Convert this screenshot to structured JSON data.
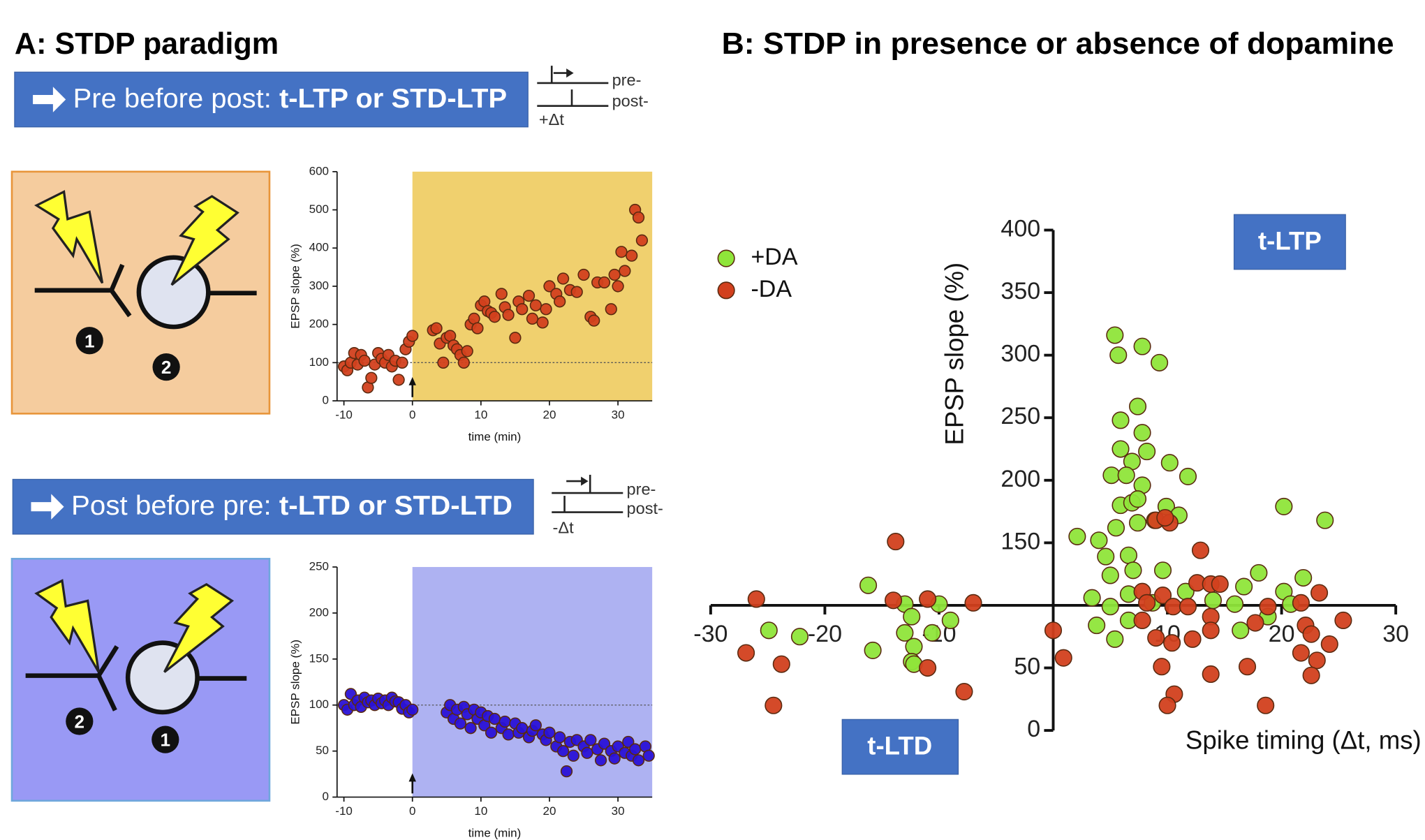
{
  "panel_a": {
    "title": "A: STDP paradigm",
    "ltp_banner": {
      "prefix": "Pre before post: ",
      "emphasis": "t-LTP or STD-LTP"
    },
    "ltp_timing": {
      "pre": "pre-",
      "post": "post-",
      "delta": "+Δt"
    },
    "ltp_neurons": [
      "1",
      "2"
    ],
    "ltd_banner": {
      "prefix": "Post before pre: ",
      "emphasis": "t-LTD or STD-LTD"
    },
    "ltd_timing": {
      "pre": "pre-",
      "post": "post-",
      "delta": "-Δt"
    },
    "ltd_neurons": [
      "2",
      "1"
    ]
  },
  "panel_b": {
    "title": "B: STDP in presence or absence of dopamine",
    "ltp_tag": "t-LTP",
    "ltd_tag": "t-LTD"
  },
  "chart_data": [
    {
      "type": "scatter",
      "x_label": "time (min)",
      "y_label": "EPSP slope (%)",
      "xlim": [
        -11,
        35
      ],
      "ylim": [
        0,
        600
      ],
      "xticks": [
        -10,
        0,
        10,
        20,
        30
      ],
      "yticks": [
        0,
        100,
        200,
        300,
        400,
        500,
        600
      ],
      "shade": {
        "from": 0,
        "color": "#f0d06e"
      },
      "reference_line": 100,
      "series": [
        {
          "color": "#d2401e",
          "x": [
            -10,
            -9.5,
            -9,
            -8.5,
            -8,
            -7.5,
            -7,
            -6.5,
            -6,
            -5.5,
            -5,
            -4.5,
            -4,
            -3.5,
            -3,
            -2.5,
            -2,
            -1.5,
            -1,
            -0.5,
            0,
            3,
            3.5,
            4,
            4.5,
            5,
            5.5,
            6,
            6.5,
            7,
            7.5,
            8,
            8.5,
            9,
            9.5,
            10,
            10.5,
            11,
            11.5,
            12,
            13,
            13.5,
            14,
            15,
            15.5,
            16,
            17,
            17.5,
            18,
            19,
            19.5,
            20,
            21,
            21.5,
            22,
            23,
            24,
            25,
            26,
            26.5,
            27,
            28,
            29,
            29.5,
            30,
            30.5,
            31,
            32,
            32.5,
            33,
            33.5
          ],
          "values": [
            90,
            80,
            100,
            125,
            95,
            120,
            105,
            35,
            60,
            95,
            125,
            110,
            100,
            120,
            90,
            105,
            55,
            100,
            135,
            155,
            170,
            185,
            190,
            150,
            100,
            165,
            170,
            145,
            135,
            120,
            100,
            130,
            200,
            215,
            190,
            250,
            260,
            235,
            230,
            220,
            280,
            245,
            225,
            165,
            260,
            240,
            275,
            215,
            250,
            205,
            240,
            300,
            280,
            260,
            320,
            290,
            285,
            330,
            220,
            210,
            310,
            310,
            240,
            330,
            300,
            390,
            340,
            380,
            500,
            480,
            420
          ]
        }
      ]
    },
    {
      "type": "scatter",
      "x_label": "time (min)",
      "y_label": "EPSP slope (%)",
      "xlim": [
        -11,
        35
      ],
      "ylim": [
        0,
        250
      ],
      "xticks": [
        -10,
        0,
        10,
        20,
        30
      ],
      "yticks": [
        0,
        50,
        100,
        150,
        200,
        250
      ],
      "shade": {
        "from": 0,
        "color": "#aeb2f2"
      },
      "reference_line": 100,
      "series": [
        {
          "color": "#2a12d6",
          "x": [
            -10,
            -9.5,
            -9,
            -8.5,
            -8,
            -7.5,
            -7,
            -6.5,
            -6,
            -5.5,
            -5,
            -4.5,
            -4,
            -3.5,
            -3,
            -2.5,
            -2,
            -1.5,
            -1,
            -0.5,
            0,
            5,
            5.5,
            6,
            6.5,
            7,
            7.5,
            8,
            8.5,
            9,
            9.5,
            10,
            10.5,
            11,
            11.5,
            12,
            13,
            13.5,
            14,
            15,
            15.5,
            16,
            17,
            17.5,
            18,
            19,
            19.5,
            20,
            21,
            21.5,
            22,
            22.5,
            23,
            23.5,
            24,
            25,
            25.5,
            26,
            27,
            27.5,
            28,
            29,
            29.5,
            30,
            31,
            31.5,
            32,
            32.5,
            33,
            34,
            34.5
          ],
          "values": [
            100,
            95,
            112,
            100,
            105,
            98,
            108,
            103,
            105,
            100,
            107,
            102,
            105,
            100,
            108,
            104,
            103,
            96,
            100,
            92,
            95,
            92,
            100,
            85,
            95,
            80,
            98,
            90,
            75,
            95,
            85,
            92,
            78,
            88,
            70,
            85,
            75,
            82,
            68,
            80,
            70,
            75,
            65,
            72,
            78,
            68,
            62,
            70,
            55,
            65,
            50,
            28,
            60,
            45,
            62,
            55,
            48,
            62,
            52,
            40,
            58,
            50,
            42,
            55,
            48,
            60,
            45,
            52,
            40,
            55,
            45
          ]
        }
      ]
    },
    {
      "type": "scatter",
      "x_label": "Spike timing (Δt, ms)",
      "y_label": "EPSP slope (%)",
      "xlim": [
        -30,
        30
      ],
      "ylim": [
        0,
        400
      ],
      "xticks": [
        -30,
        -20,
        -10,
        10,
        20,
        30
      ],
      "yticks": [
        0,
        50,
        150,
        200,
        250,
        300,
        350,
        400
      ],
      "x_axis_at": 100,
      "y_axis_at": 0,
      "legend": "top-left",
      "series": [
        {
          "name": "+DA",
          "color": "#8fe53a",
          "x": [
            -16.2,
            -24.9,
            -22.2,
            -15.8,
            -13,
            -12.4,
            -13,
            -12.2,
            -12.4,
            -12.2,
            -10.6,
            -10,
            -9,
            5.4,
            5.7,
            7.8,
            9.3,
            7.4,
            5.9,
            7.8,
            5.9,
            8.2,
            6.9,
            5.1,
            6.4,
            10.2,
            11.8,
            7.8,
            5.9,
            6.9,
            7.4,
            9.9,
            11,
            2.1,
            4,
            5.5,
            7.4,
            8.9,
            4.6,
            6.6,
            5,
            7,
            9.6,
            3.4,
            5,
            6.6,
            8.7,
            3.8,
            5.4,
            6.6,
            11.6,
            14,
            15.9,
            16.4,
            16.7,
            18,
            18.8,
            20.2,
            21.9,
            20.2,
            20.8,
            23.8
          ],
          "values": [
            116,
            80,
            75,
            64,
            101,
            91,
            78,
            67,
            55,
            53,
            78,
            101,
            88,
            316,
            300,
            307,
            294,
            259,
            248,
            238,
            225,
            223,
            215,
            204,
            204,
            214,
            203,
            196,
            180,
            182,
            185,
            179,
            172,
            155,
            152,
            162,
            166,
            168,
            139,
            140,
            124,
            128,
            128,
            106,
            99,
            109,
            102,
            84,
            73,
            88,
            111,
            104,
            101,
            80,
            115,
            126,
            91,
            179,
            122,
            111,
            101,
            168
          ]
        },
        {
          "name": "-DA",
          "color": "#d2401e",
          "x": [
            -26,
            -26.9,
            -23.8,
            -24.5,
            -13.8,
            -14,
            -11,
            -7,
            -11,
            -7.8,
            0,
            0.9,
            9,
            10.2,
            9.8,
            12.9,
            7.8,
            8.2,
            9.6,
            10.5,
            7.8,
            9,
            10.4,
            9.5,
            12.2,
            10.6,
            10,
            11.8,
            12.6,
            13.8,
            14.6,
            13.8,
            13.8,
            13.8,
            17,
            18.6,
            17.7,
            18.8,
            21.7,
            23.3,
            22.1,
            22.6,
            21.7,
            23.1,
            22.6,
            24.2,
            25.4
          ],
          "values": [
            105,
            62,
            53,
            20,
            151,
            104,
            105,
            102,
            50,
            31,
            80,
            58,
            168,
            166,
            170,
            144,
            111,
            102,
            108,
            99,
            88,
            74,
            70,
            51,
            73,
            29,
            20,
            99,
            118,
            117,
            117,
            91,
            80,
            45,
            51,
            20,
            86,
            99,
            102,
            110,
            84,
            77,
            62,
            56,
            44,
            69,
            88
          ]
        }
      ]
    }
  ]
}
